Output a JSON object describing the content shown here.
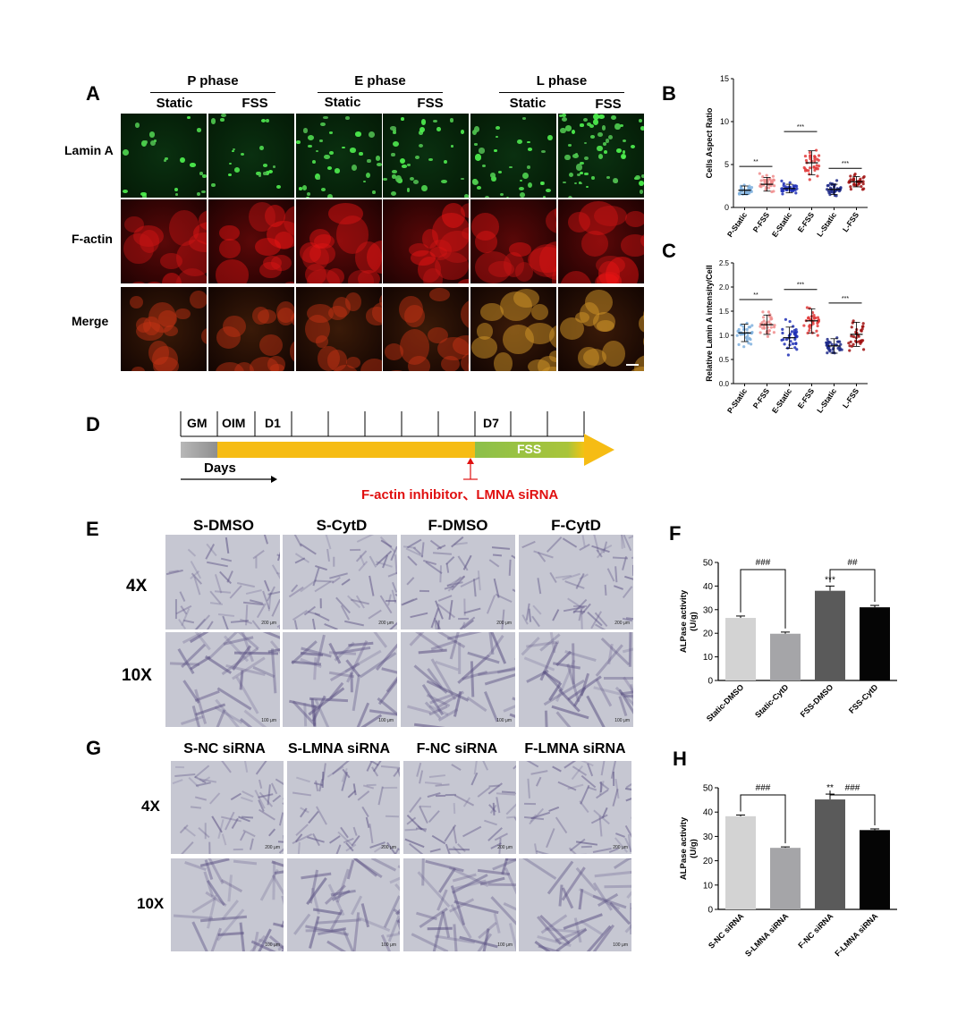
{
  "panelA": {
    "label": "A",
    "phases": [
      "P phase",
      "E phase",
      "L phase"
    ],
    "conditions": [
      "Static",
      "FSS"
    ],
    "rows": [
      "Lamin A",
      "F-actin",
      "Merge"
    ]
  },
  "panelB": {
    "label": "B",
    "chart_data": {
      "type": "scatter",
      "ylabel": "Cells Aspect Ratio",
      "xlabel": "",
      "categories": [
        "P-Static",
        "P-FSS",
        "E-Static",
        "E-FSS",
        "L-Static",
        "L-FSS"
      ],
      "ylim": [
        0,
        15
      ],
      "yticks": [
        0,
        5,
        10,
        15
      ],
      "means": [
        2.0,
        2.7,
        2.2,
        5.2,
        2.1,
        3.0
      ],
      "sds": [
        0.5,
        0.8,
        0.5,
        1.4,
        0.6,
        0.6
      ],
      "colors": [
        "#7fb0de",
        "#f08c8c",
        "#1f2fb5",
        "#e23a3a",
        "#1e2a8a",
        "#a01010"
      ],
      "significance": [
        {
          "pair": [
            0,
            1
          ],
          "label": "**"
        },
        {
          "pair": [
            2,
            3
          ],
          "label": "***"
        },
        {
          "pair": [
            4,
            5
          ],
          "label": "***"
        }
      ]
    }
  },
  "panelC": {
    "label": "C",
    "chart_data": {
      "type": "scatter",
      "ylabel": "Relative Lamin A intensity/Cell",
      "xlabel": "",
      "categories": [
        "P-Static",
        "P-FSS",
        "E-Static",
        "E-FSS",
        "L-Static",
        "L-FSS"
      ],
      "ylim": [
        0,
        2.5
      ],
      "yticks": [
        "0.0",
        "0.5",
        "1.0",
        "1.5",
        "2.0",
        "2.5"
      ],
      "means": [
        1.05,
        1.22,
        0.95,
        1.3,
        0.78,
        1.02
      ],
      "sds": [
        0.18,
        0.2,
        0.22,
        0.25,
        0.15,
        0.25
      ],
      "colors": [
        "#7fb0de",
        "#f08c8c",
        "#1f2fb5",
        "#e23a3a",
        "#1e2a8a",
        "#a01010"
      ],
      "significance": [
        {
          "pair": [
            0,
            1
          ],
          "label": "**"
        },
        {
          "pair": [
            2,
            3
          ],
          "label": "***"
        },
        {
          "pair": [
            4,
            5
          ],
          "label": "***"
        }
      ]
    }
  },
  "panelD": {
    "label": "D",
    "stages": [
      "GM",
      "OIM",
      "D1",
      "D7"
    ],
    "fss": "FSS",
    "days": "Days",
    "treatment": "F-actin inhibitor、LMNA siRNA"
  },
  "panelE": {
    "label": "E",
    "columns": [
      "S-DMSO",
      "S-CytD",
      "F-DMSO",
      "F-CytD"
    ],
    "rows": [
      "4X",
      "10X"
    ],
    "scalebars": [
      "200 μm",
      "100 μm"
    ]
  },
  "panelF": {
    "label": "F",
    "chart_data": {
      "type": "bar",
      "categories": [
        "Static-DMSO",
        "Static-CytD",
        "FSS-DMSO",
        "FSS-CytD"
      ],
      "values": [
        26.5,
        19.8,
        38,
        31
      ],
      "errors": [
        0.8,
        0.7,
        2.0,
        0.8
      ],
      "colors": [
        "#d3d3d3",
        "#a5a5a8",
        "#5a5a5a",
        "#050505"
      ],
      "ylabel": "ALPase activity\n(U/g)",
      "ylabel_lines": [
        "ALPase activity",
        "(U/g)"
      ],
      "ylim": [
        0,
        50
      ],
      "yticks": [
        0,
        10,
        20,
        30,
        40,
        50
      ],
      "annotations": [
        {
          "pair": [
            0,
            1
          ],
          "label": "###"
        },
        {
          "pair": [
            2,
            3
          ],
          "label": "##"
        },
        {
          "bar": 2,
          "label": "***"
        }
      ]
    }
  },
  "panelG": {
    "label": "G",
    "columns": [
      "S-NC siRNA",
      "S-LMNA siRNA",
      "F-NC siRNA",
      "F-LMNA siRNA"
    ],
    "rows": [
      "4X",
      "10X"
    ],
    "scalebars": [
      "200 μm",
      "100 μm"
    ]
  },
  "panelH": {
    "label": "H",
    "chart_data": {
      "type": "bar",
      "categories": [
        "S-NC siRNA",
        "S-LMNA siRNA",
        "F-NC siRNA",
        "F-LMNA siRNA"
      ],
      "values": [
        38.3,
        25.3,
        45.2,
        32.6
      ],
      "errors": [
        0.5,
        0.4,
        2.2,
        0.5
      ],
      "colors": [
        "#d3d3d3",
        "#a5a5a8",
        "#5a5a5a",
        "#050505"
      ],
      "ylabel": "ALPase activity\n(U/g)",
      "ylabel_lines": [
        "ALPase activity",
        "(U/g)"
      ],
      "ylim": [
        0,
        50
      ],
      "yticks": [
        0,
        10,
        20,
        30,
        40,
        50
      ],
      "annotations": [
        {
          "pair": [
            0,
            1
          ],
          "label": "###"
        },
        {
          "pair": [
            2,
            3
          ],
          "label": "###"
        },
        {
          "bar": 2,
          "label": "**"
        }
      ]
    }
  }
}
